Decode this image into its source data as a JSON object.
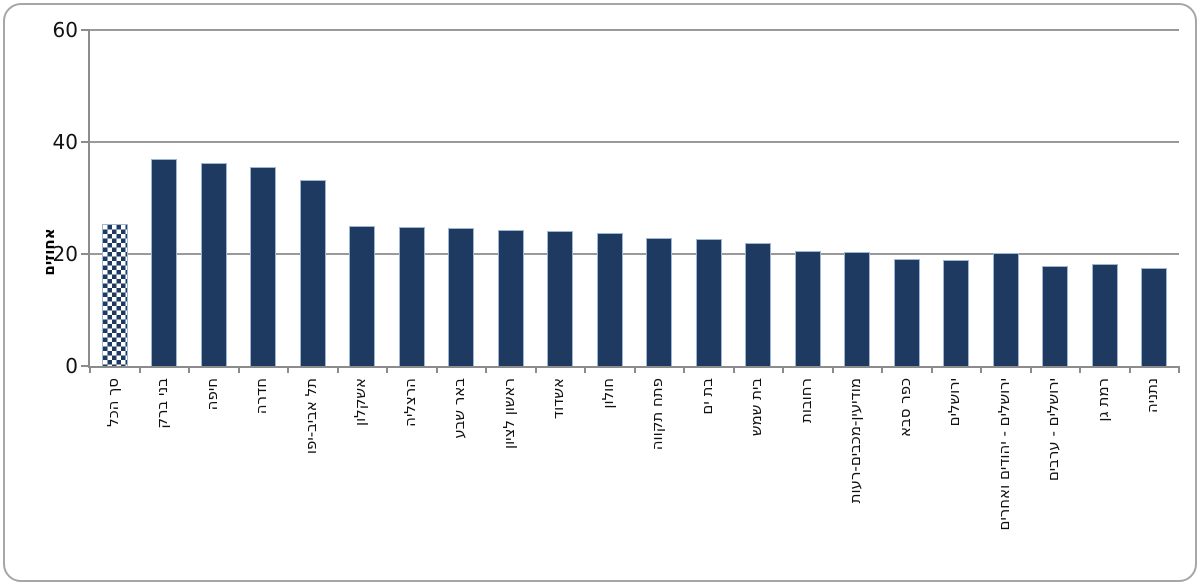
{
  "chart_data": {
    "type": "bar",
    "title": "",
    "xlabel": "",
    "ylabel": "אחוזים",
    "ylim": [
      0,
      60
    ],
    "yticks": [
      0,
      20,
      40,
      60
    ],
    "grid": "horizontal",
    "legend": "none",
    "bar_color": "#1e3a60",
    "bar_border_color": "#9cb6d4",
    "axis_color": "#8c8c8c",
    "frame_color": "#a6a6a6",
    "first_bar_style": "checkerboard-pattern",
    "categories": [
      "סך הכל",
      "בני ברק",
      "חיפה",
      "חדרה",
      "תל אביב-יפו",
      "אשקלון",
      "הרצליה",
      "באר שבע",
      "ראשון לציון",
      "אשדוד",
      "חולון",
      "פתח תקווה",
      "בת ים",
      "בית שמש",
      "רחובות",
      "מודיעין-מכבים-רעות",
      "כפר סבא",
      "ירושלים",
      "ירושלים - יהודים ואחרים",
      "ירושלים - ערבים",
      "רמת גן",
      "נתניה"
    ],
    "values": [
      25.4,
      37.0,
      36.2,
      35.5,
      33.3,
      25.0,
      24.8,
      24.6,
      24.3,
      24.1,
      23.8,
      22.9,
      22.6,
      22.0,
      20.6,
      20.4,
      19.1,
      19.0,
      20.2,
      17.9,
      18.2,
      17.5
    ]
  }
}
